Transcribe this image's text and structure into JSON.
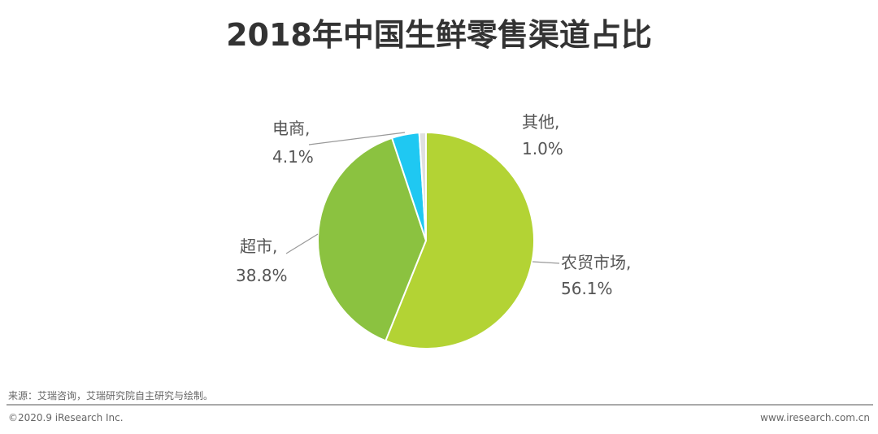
{
  "chart_data": {
    "type": "pie",
    "title": "2018年中国生鲜零售渠道占比",
    "start": "12 o'clock",
    "direction": "clockwise",
    "slices": [
      {
        "label": "农贸市场,",
        "value": 56.1,
        "value_label": "56.1%",
        "color": "#b3d334"
      },
      {
        "label": "超市,",
        "value": 38.8,
        "value_label": "38.8%",
        "color": "#8bc240"
      },
      {
        "label": "电商,",
        "value": 4.1,
        "value_label": "4.1%",
        "color": "#1fc8f2"
      },
      {
        "label": "其他,",
        "value": 1.0,
        "value_label": "1.0%",
        "color": "#e0e0e0"
      }
    ]
  },
  "footer": {
    "source": "来源：艾瑞咨询，艾瑞研究院自主研究与绘制。",
    "copyright": "©2020.9 iResearch Inc.",
    "website": "www.iresearch.com.cn"
  }
}
